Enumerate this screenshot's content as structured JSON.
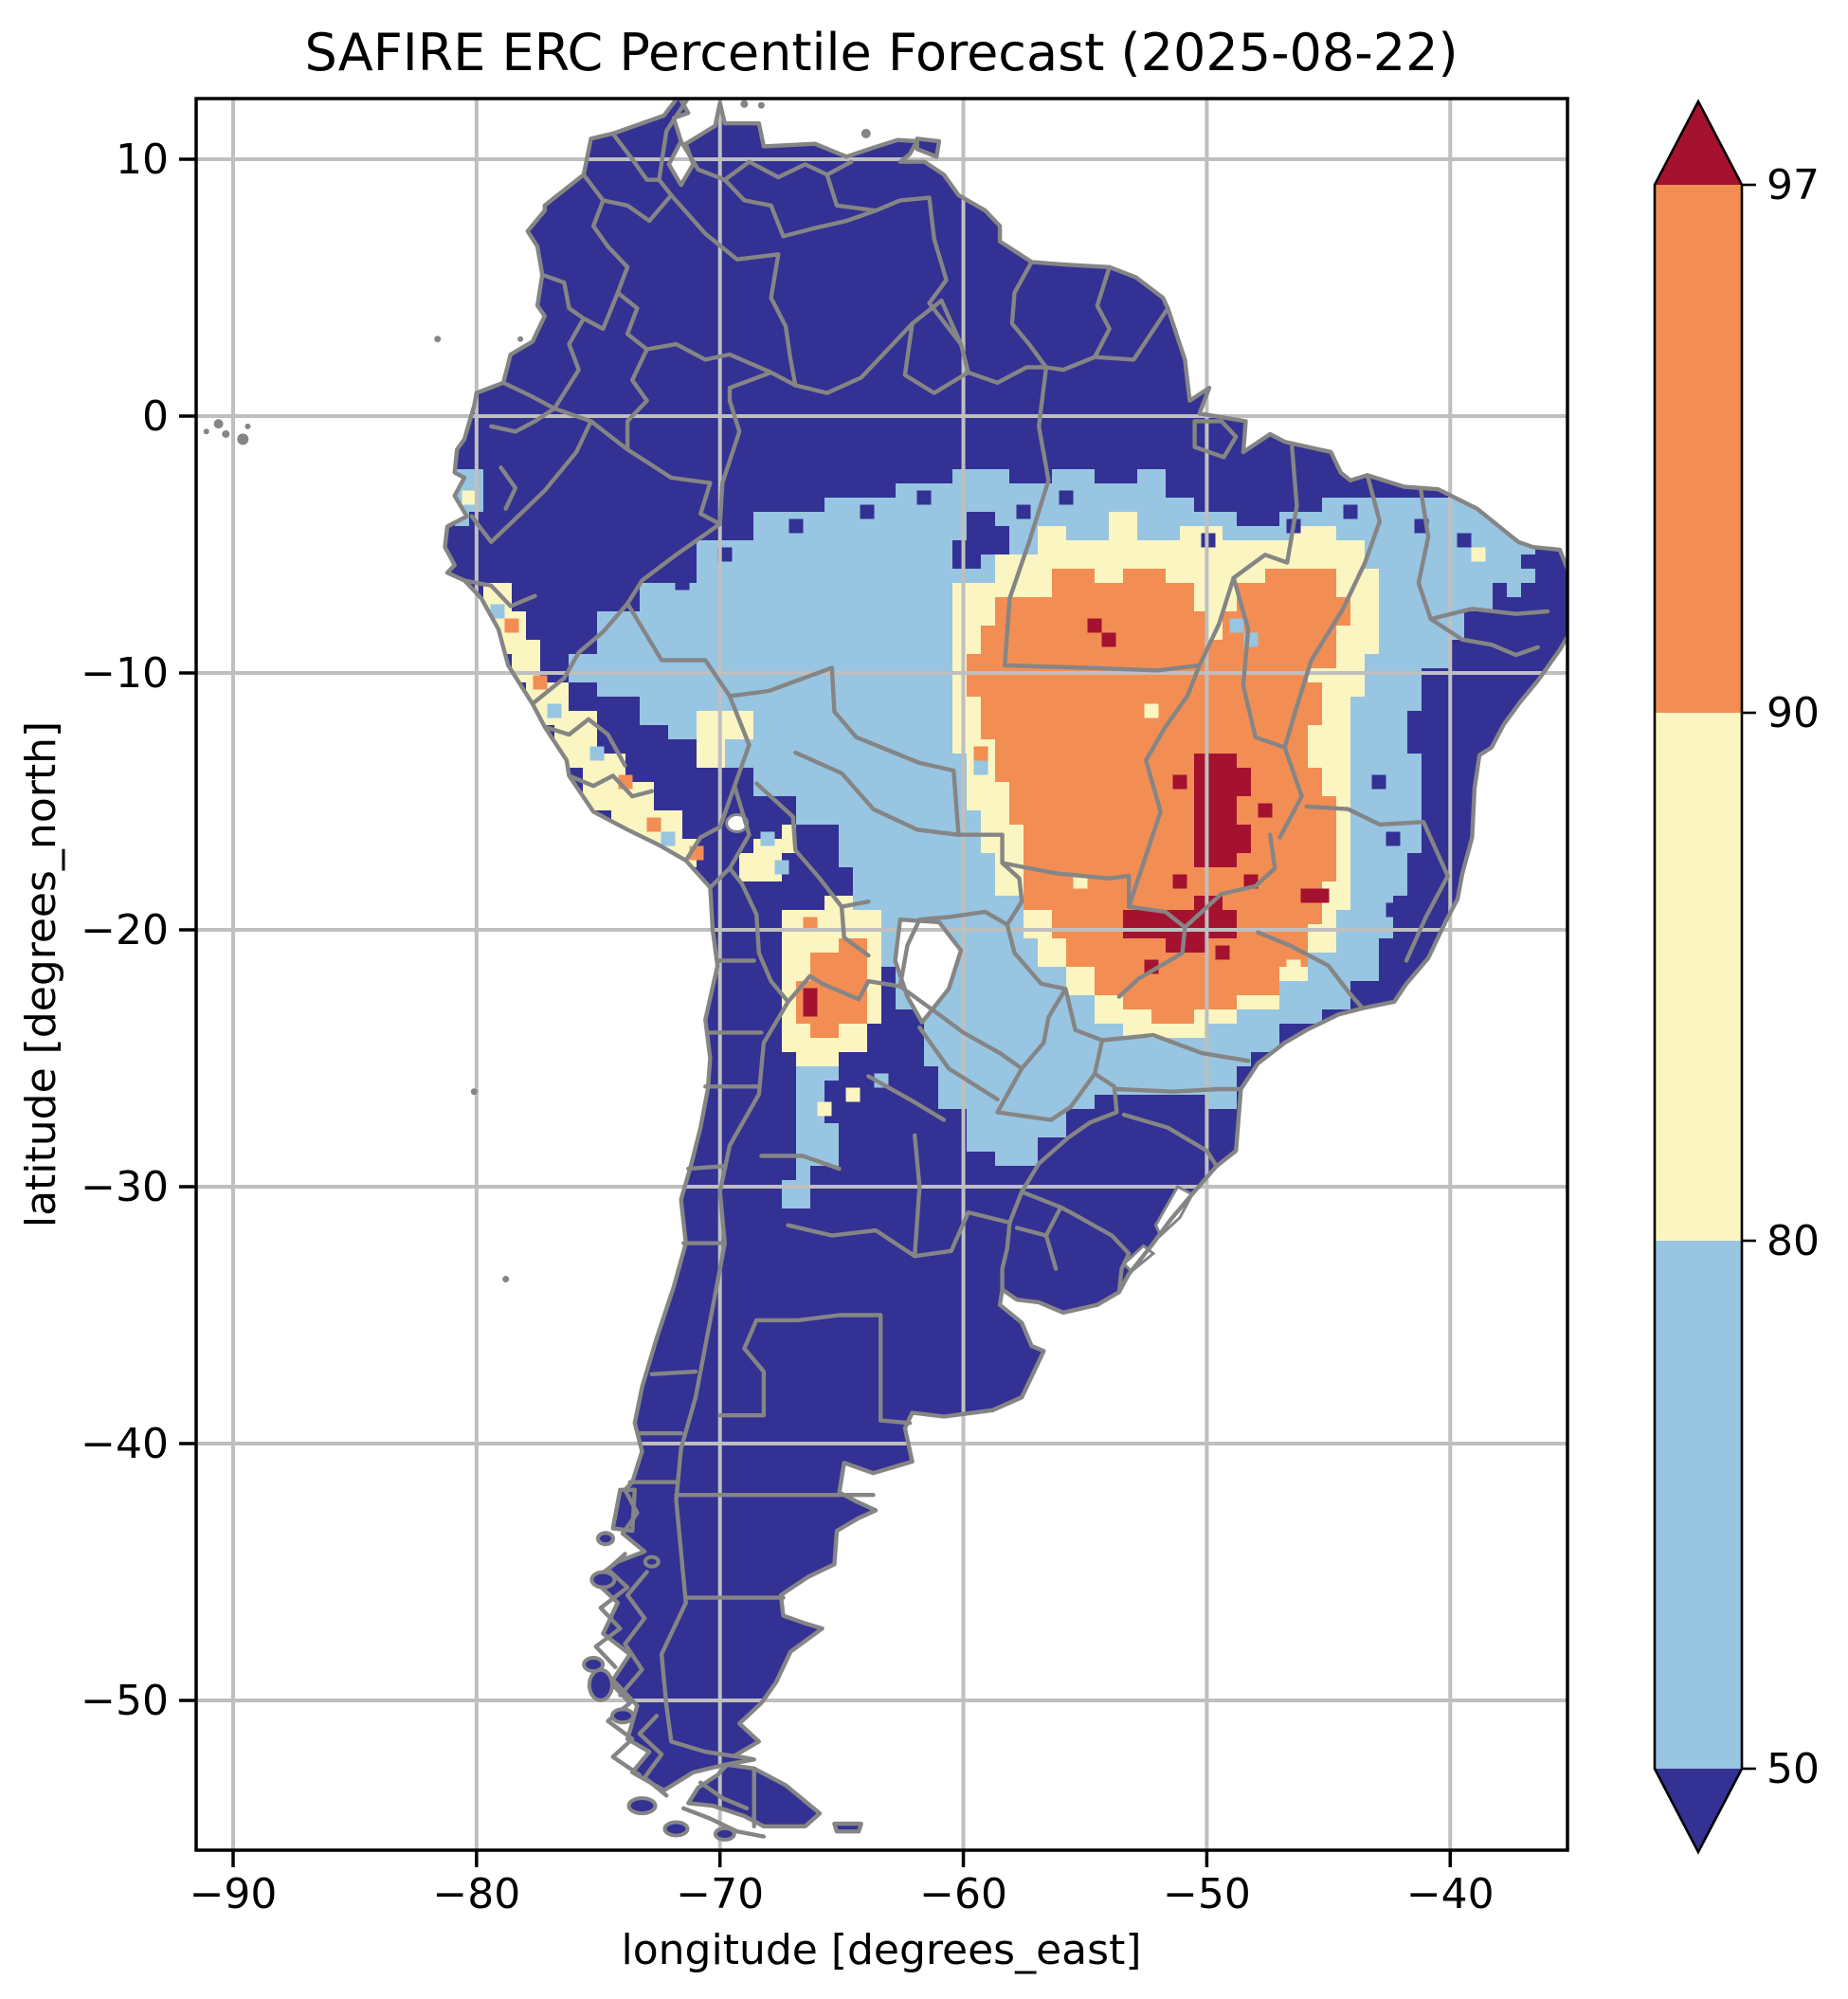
{
  "title": "SAFIRE ERC Percentile Forecast (2025-08-22)",
  "axes": {
    "xlabel": "longitude [degrees_east]",
    "ylabel": "latitude [degrees_north]",
    "x_tick_labels": [
      "−90",
      "−80",
      "−70",
      "−60",
      "−50",
      "−40"
    ],
    "x_tick_lons": [
      -90,
      -80,
      -70,
      -60,
      -50,
      -40
    ],
    "y_tick_labels": [
      "10",
      "0",
      "−10",
      "−20",
      "−30",
      "−40",
      "−50"
    ],
    "y_tick_lats": [
      10,
      0,
      -10,
      -20,
      -30,
      -40,
      -50
    ]
  },
  "colorbar": {
    "tick_labels": [
      "97",
      "90",
      "80",
      "50"
    ],
    "levels": [
      50,
      80,
      90,
      97
    ],
    "extend": "both",
    "segment_colors_top_to_bottom": [
      "#f28e54",
      "#faf5c1",
      "#98c5e1"
    ],
    "over_color": "#a51230",
    "under_color": "#333193"
  },
  "palette": {
    "navy": "#333193",
    "lightblue": "#98c5e1",
    "lightyellow": "#faf5c1",
    "orange": "#f28e54",
    "darkred": "#a51230",
    "border_gray": "#858585",
    "grid_gray": "#bfbfbf",
    "frame_black": "#000000",
    "ocean_white": "#ffffff"
  },
  "chart_data": {
    "type": "heatmap",
    "title": "SAFIRE ERC Percentile Forecast (2025-08-22)",
    "xlabel": "longitude [degrees_east]",
    "ylabel": "latitude [degrees_north]",
    "xlim": [
      -91.6,
      -35.1
    ],
    "ylim": [
      -55.9,
      12.4
    ],
    "x_ticks": [
      -90,
      -80,
      -70,
      -60,
      -50,
      -40
    ],
    "y_ticks": [
      10,
      0,
      -10,
      -20,
      -30,
      -40,
      -50
    ],
    "grid": true,
    "legend_position": "right-vertical-colorbar",
    "variable": "ERC percentile",
    "classes": [
      {
        "range": "<50",
        "color": "#333193",
        "where": "most of continent: Venezuela, Colombia, Guianas, Andes, eastern/NE Brazil coast, southern Brazil, Uruguay, Argentina, Chile, Patagonia"
      },
      {
        "range": "50-80",
        "color": "#98c5e1",
        "where": "Amazon basin from eastern Peru across central Brazil, NE interior (Ceara), strip east of the orange core to Rio, eastern Bolivia, Paraguay and Andean NW Argentina down to about lat -31"
      },
      {
        "range": "80-90",
        "color": "#faf5c1",
        "where": "ring around central-Brazil core, Bolivian lowlands/altiplano patches, thin band along Peruvian Andes, ring around NW-Argentina patch"
      },
      {
        "range": "90-97",
        "color": "#f28e54",
        "where": "large core over central/eastern Brazil (Mato Grosso, Goias, Tocantins, Minas Gerais, Sao Paulo) approx lon -58..-44, lat -6..-23, plus patch in S Bolivia / NW Argentina near lon -66..-64, lat -20..-24"
      },
      {
        "range": ">97",
        "color": "#a51230",
        "where": "hotspots in Goias/Tocantins and around lat -19..-20.5"
      }
    ],
    "hotspots_over_97": [
      {
        "approx_lon": -49.5,
        "approx_lat": -15.3
      },
      {
        "approx_lon": -51.0,
        "approx_lat": -19.8
      },
      {
        "approx_lon": -66.0,
        "approx_lat": -22.5
      },
      {
        "approx_lon": -54.6,
        "approx_lat": -8.5
      },
      {
        "approx_lon": -45.5,
        "approx_lat": -18.5
      }
    ],
    "no_data_white_polygon": {
      "where": "NW Paraguay (Chaco)",
      "approx_lon": -61.5,
      "approx_lat": -21.5
    }
  }
}
